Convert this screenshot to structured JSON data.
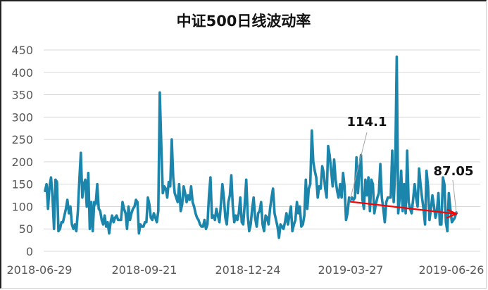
{
  "chart_data": {
    "type": "line",
    "title": "中证500日线波动率",
    "xlabel": "",
    "ylabel": "",
    "ylim": [
      0,
      450
    ],
    "yticks": [
      0,
      50,
      100,
      150,
      200,
      250,
      300,
      350,
      400,
      450
    ],
    "xticks": [
      "2018-06-29",
      "2018-09-21",
      "2018-12-24",
      "2019-03-27",
      "2019-06-26"
    ],
    "grid": true,
    "legend": "none",
    "line_color": "#1B85AB",
    "trend_color": "#FF0000",
    "annotations": [
      {
        "text": "114.1",
        "value": 114.1,
        "index": 178
      },
      {
        "text": "87.05",
        "value": 87.05,
        "index": 243
      }
    ],
    "trend_arrow": {
      "from_index": 178,
      "from_value": 114.1,
      "to_index": 243,
      "to_value": 87.05
    },
    "series": [
      {
        "name": "中证500日线波动率",
        "values": [
          135,
          150,
          95,
          145,
          165,
          120,
          50,
          160,
          155,
          45,
          50,
          65,
          65,
          80,
          95,
          115,
          85,
          100,
          60,
          50,
          60,
          45,
          90,
          160,
          220,
          120,
          150,
          160,
          100,
          175,
          50,
          110,
          45,
          110,
          105,
          150,
          95,
          90,
          70,
          60,
          80,
          55,
          65,
          40,
          65,
          80,
          65,
          75,
          80,
          70,
          70,
          70,
          110,
          95,
          85,
          50,
          100,
          70,
          85,
          95,
          100,
          115,
          110,
          40,
          60,
          55,
          55,
          65,
          65,
          120,
          105,
          75,
          70,
          85,
          75,
          65,
          90,
          355,
          240,
          130,
          145,
          140,
          120,
          155,
          145,
          250,
          165,
          130,
          120,
          110,
          150,
          90,
          105,
          145,
          130,
          110,
          125,
          115,
          145,
          110,
          100,
          85,
          75,
          70,
          60,
          55,
          55,
          70,
          50,
          60,
          125,
          165,
          75,
          80,
          70,
          95,
          80,
          65,
          105,
          150,
          120,
          75,
          60,
          110,
          125,
          170,
          100,
          65,
          80,
          70,
          85,
          120,
          65,
          60,
          105,
          160,
          80,
          45,
          60,
          95,
          120,
          75,
          55,
          85,
          90,
          110,
          60,
          45,
          80,
          75,
          60,
          95,
          120,
          140,
          85,
          70,
          55,
          30,
          60,
          55,
          50,
          65,
          85,
          60,
          80,
          100,
          45,
          60,
          70,
          110,
          85,
          100,
          55,
          60,
          80,
          160,
          95,
          140,
          150,
          270,
          200,
          180,
          165,
          120,
          145,
          140,
          190,
          175,
          140,
          120,
          235,
          215,
          180,
          145,
          205,
          160,
          135,
          120,
          150,
          120,
          175,
          145,
          70,
          85,
          120,
          115,
          120,
          115,
          120,
          210,
          130,
          180,
          215,
          115,
          95,
          160,
          125,
          165,
          90,
          160,
          150,
          85,
          105,
          120,
          130,
          195,
          120,
          95,
          65,
          110,
          120,
          120,
          120,
          225,
          110,
          180,
          435,
          85,
          120,
          180,
          90,
          150,
          85,
          225,
          110,
          95,
          85,
          115,
          150,
          120,
          100,
          185,
          150,
          120,
          95,
          60,
          180,
          145,
          70,
          95,
          125,
          100,
          75,
          90,
          130,
          60,
          60,
          165,
          150,
          65,
          45,
          130,
          95,
          65,
          70,
          75,
          87.05
        ]
      }
    ]
  }
}
